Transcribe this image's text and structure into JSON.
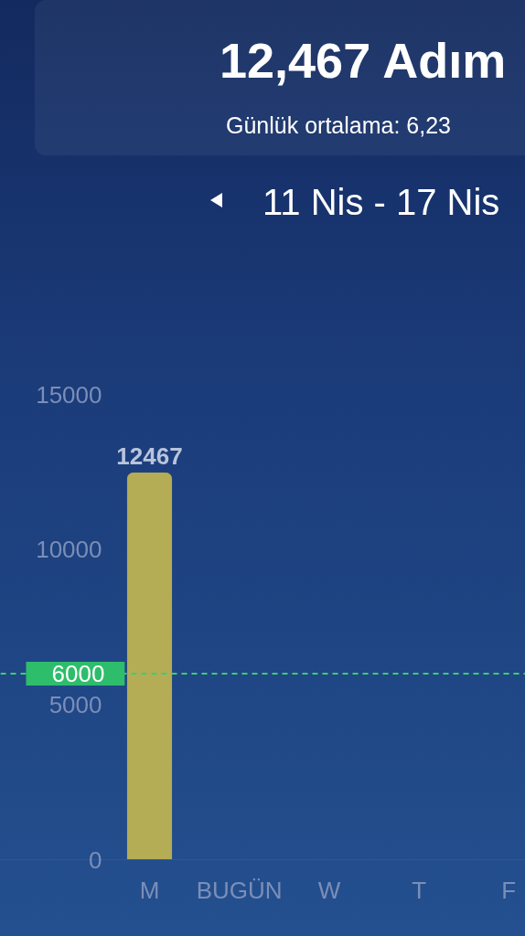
{
  "chart_data": {
    "type": "bar",
    "title": "12,467 Adım",
    "subtitle": "Günlük ortalama: 6,23",
    "annotations": [
      "11 Nis - 17 Nis"
    ],
    "categories": [
      "M",
      "BUGÜN",
      "W",
      "T",
      "F"
    ],
    "values": [
      12467,
      null,
      null,
      null,
      null
    ],
    "color": "#b5ad56",
    "ylim": [
      0,
      15000
    ],
    "yticks": [
      0,
      5000,
      10000,
      15000
    ],
    "ref_lines": [
      {
        "axis": "y",
        "value": 6000,
        "label": "6000",
        "color": "#3ccf6e",
        "line_style": "dashed"
      }
    ],
    "data_labels": true
  }
}
